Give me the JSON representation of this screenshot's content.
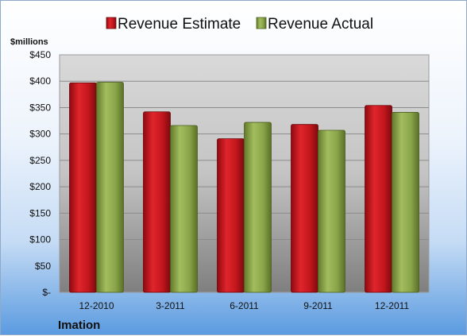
{
  "chart_data": {
    "type": "bar",
    "categories": [
      "12-2010",
      "3-2011",
      "6-2011",
      "9-2011",
      "12-2011"
    ],
    "series": [
      {
        "name": "Revenue Estimate",
        "values": [
          397,
          342,
          291,
          318,
          354
        ],
        "color": "#c0161c"
      },
      {
        "name": "Revenue Actual",
        "values": [
          398,
          316,
          322,
          307,
          341
        ],
        "color": "#8aa54a"
      }
    ],
    "ylabel": "$millions",
    "ylim": [
      0,
      450
    ],
    "yticks": [
      0,
      50,
      100,
      150,
      200,
      250,
      300,
      350,
      400,
      450
    ],
    "ytick_labels": [
      "$-",
      "$50",
      "$100",
      "$150",
      "$200",
      "$250",
      "$300",
      "$350",
      "$400",
      "$450"
    ],
    "grid": true,
    "legend_position": "top"
  },
  "footer_label": "Imation"
}
